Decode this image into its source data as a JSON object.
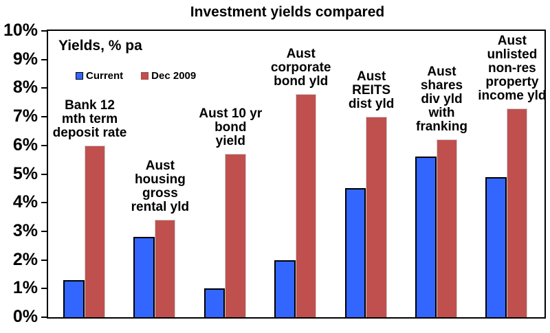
{
  "chart_data": {
    "type": "bar",
    "title": "Investment yields compared",
    "inner_label": "Yields, % pa",
    "ylabel": "",
    "xlabel": "",
    "ylim": [
      0,
      10
    ],
    "ytick_step": 1,
    "ytick_suffix": "%",
    "grid": false,
    "legend_position": "inside-top-left",
    "categories": [
      "Bank 12 mth term deposit rate",
      "Aust housing gross rental yld",
      "Aust 10 yr bond yield",
      "Aust corporate bond yld",
      "Aust REITS dist yld",
      "Aust shares div yld with franking",
      "Aust unlisted non-res property income yld"
    ],
    "category_label_lines": [
      [
        "Bank 12",
        "mth term",
        "deposit rate"
      ],
      [
        "Aust",
        "housing",
        "gross",
        "rental yld"
      ],
      [
        "Aust 10 yr",
        "bond",
        "yield"
      ],
      [
        "Aust",
        "corporate",
        "bond yld"
      ],
      [
        "Aust",
        "REITS",
        "dist yld"
      ],
      [
        "Aust",
        "shares",
        "div yld",
        "with",
        "franking"
      ],
      [
        "Aust",
        "unlisted",
        "non-res",
        "property",
        "income yld"
      ]
    ],
    "series": [
      {
        "name": "Current",
        "color": "#3366ff",
        "border_color": "#000000",
        "values": [
          1.3,
          2.8,
          1.0,
          2.0,
          4.5,
          5.6,
          4.9
        ]
      },
      {
        "name": "Dec 2009",
        "color": "#c0504d",
        "border_color": "#cfcfcf",
        "values": [
          6.0,
          3.4,
          5.7,
          7.8,
          7.0,
          6.2,
          7.3
        ]
      }
    ]
  }
}
